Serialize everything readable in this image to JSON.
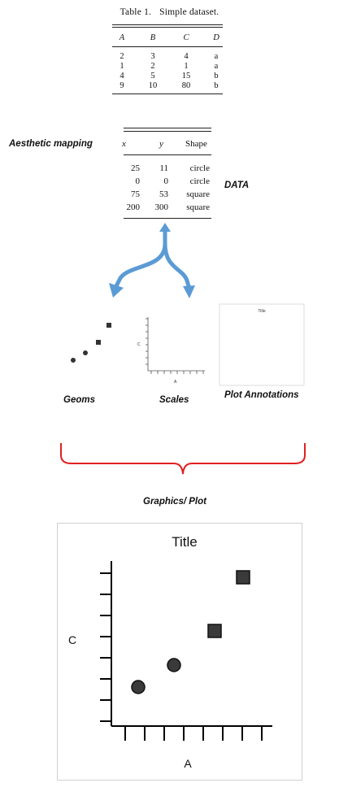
{
  "table1": {
    "caption_label": "Table 1.",
    "caption_text": "Simple dataset.",
    "columns": [
      "A",
      "B",
      "C",
      "D"
    ],
    "rows": [
      [
        "2",
        "3",
        "4",
        "a"
      ],
      [
        "1",
        "2",
        "1",
        "a"
      ],
      [
        "4",
        "5",
        "15",
        "b"
      ],
      [
        "9",
        "10",
        "80",
        "b"
      ]
    ]
  },
  "table2": {
    "columns": [
      "x",
      "y",
      "Shape"
    ],
    "rows": [
      [
        "25",
        "11",
        "circle"
      ],
      [
        "0",
        "0",
        "circle"
      ],
      [
        "75",
        "53",
        "square"
      ],
      [
        "200",
        "300",
        "square"
      ]
    ]
  },
  "labels": {
    "aesthetic_mapping": "Aesthetic mapping",
    "data": "DATA",
    "geoms": "Geoms",
    "scales": "Scales",
    "plot_annotations": "Plot Annotations",
    "graphics_plot": "Graphics/ Plot"
  },
  "mini_scales": {
    "xlabel": "A",
    "ylabel": "C"
  },
  "mini_annotation": {
    "title": "Title"
  },
  "chart_data": {
    "type": "scatter",
    "title": "Title",
    "xlabel": "A",
    "ylabel": "C",
    "points": [
      {
        "x": 2,
        "y": 4,
        "shape": "circle"
      },
      {
        "x": 1,
        "y": 1,
        "shape": "circle"
      },
      {
        "x": 4,
        "y": 15,
        "shape": "square"
      },
      {
        "x": 9,
        "y": 80,
        "shape": "square"
      }
    ]
  },
  "colors": {
    "arrow": "#5b9bd5",
    "brace": "#e02020",
    "marker": "#3a3a3a",
    "marker_stroke": "#111111"
  }
}
